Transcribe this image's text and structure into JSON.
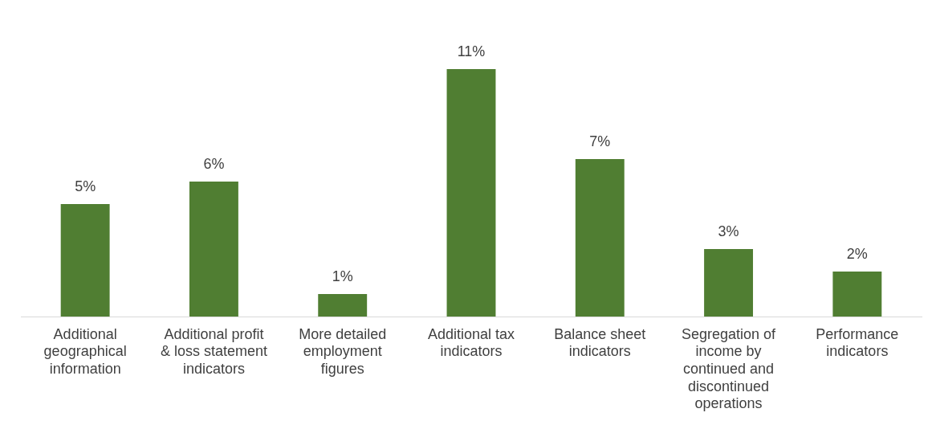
{
  "chart_data": {
    "type": "bar",
    "categories": [
      "Additional geographical information",
      "Additional profit & loss statement indicators",
      "More detailed employment figures",
      "Additional tax indicators",
      "Balance sheet indicators",
      "Segregation of income by continued and discontinued operations",
      "Performance indicators"
    ],
    "values": [
      5,
      6,
      1,
      11,
      7,
      3,
      2
    ],
    "value_labels": [
      "5%",
      "6%",
      "1%",
      "11%",
      "7%",
      "3%",
      "2%"
    ],
    "color": "#507e32",
    "relative": false,
    "grid": false,
    "legend": false
  }
}
